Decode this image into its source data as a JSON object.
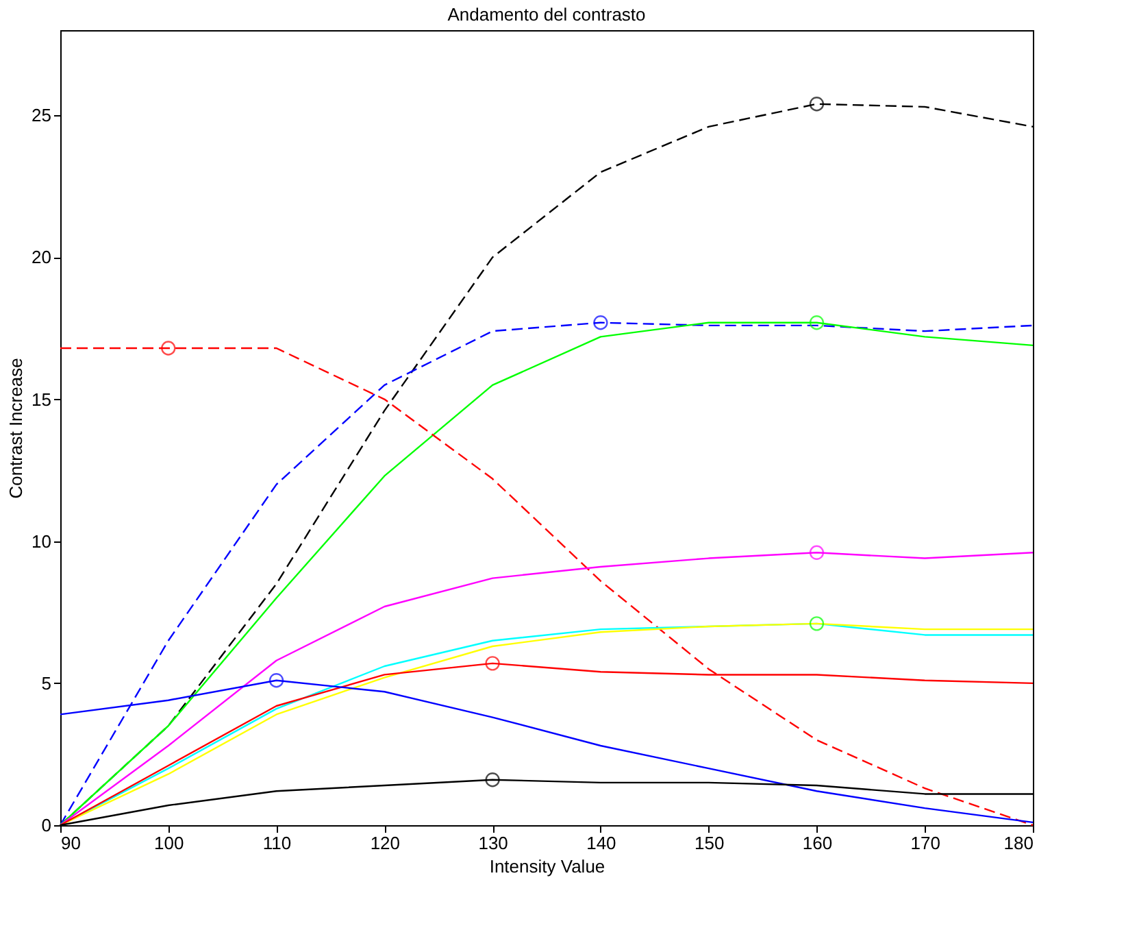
{
  "chart_data": {
    "type": "line",
    "title": "Andamento del contrasto",
    "xlabel": "Intensity Value",
    "ylabel": "Contrast Increase",
    "x": [
      90,
      100,
      110,
      120,
      130,
      140,
      150,
      160,
      170,
      180
    ],
    "xlim": [
      90,
      180
    ],
    "xticks": [
      90,
      100,
      110,
      120,
      130,
      140,
      150,
      160,
      170,
      180
    ],
    "ylim": [
      0,
      28
    ],
    "yticks": [
      0,
      5,
      10,
      15,
      20,
      25
    ],
    "grid": false,
    "marker": "none",
    "series": [
      {
        "color": "#000000",
        "line_style": "dashed",
        "values": [
          0,
          3.5,
          8.5,
          14.6,
          20,
          23,
          24.6,
          25.4,
          25.3,
          24.6
        ]
      },
      {
        "color": "#0000ff",
        "line_style": "dashed",
        "values": [
          0,
          6.5,
          12,
          15.5,
          17.4,
          17.7,
          17.6,
          17.6,
          17.4,
          17.6
        ]
      },
      {
        "color": "#00ff00",
        "line_style": "solid",
        "values": [
          0,
          3.5,
          8,
          12.3,
          15.5,
          17.2,
          17.7,
          17.7,
          17.2,
          16.9
        ]
      },
      {
        "color": "#ff0000",
        "line_style": "dashed",
        "values": [
          16.8,
          16.8,
          16.8,
          15,
          12.2,
          8.6,
          5.5,
          3,
          1.3,
          0
        ]
      },
      {
        "color": "#ff00ff",
        "line_style": "solid",
        "values": [
          0,
          2.8,
          5.8,
          7.7,
          8.7,
          9.1,
          9.4,
          9.6,
          9.4,
          9.6
        ]
      },
      {
        "color": "#00ffff",
        "line_style": "solid",
        "values": [
          0,
          2,
          4.1,
          5.6,
          6.5,
          6.9,
          7.0,
          7.1,
          6.7,
          6.7
        ]
      },
      {
        "color": "#ffff00",
        "line_style": "solid",
        "values": [
          0,
          1.8,
          3.9,
          5.2,
          6.3,
          6.8,
          7.0,
          7.1,
          6.9,
          6.9
        ]
      },
      {
        "color": "#ff0000",
        "line_style": "solid",
        "values": [
          0,
          2.1,
          4.2,
          5.3,
          5.7,
          5.4,
          5.3,
          5.3,
          5.1,
          5.0
        ]
      },
      {
        "color": "#0000ff",
        "line_style": "solid",
        "values": [
          3.9,
          4.4,
          5.1,
          4.7,
          3.8,
          2.8,
          2.0,
          1.2,
          0.6,
          0.1
        ]
      },
      {
        "color": "#000000",
        "line_style": "solid",
        "values": [
          0,
          0.7,
          1.2,
          1.4,
          1.6,
          1.5,
          1.5,
          1.4,
          1.1,
          1.1
        ]
      },
      {
        "type": "scatter",
        "marker": "circle",
        "x": [
          160,
          100,
          140,
          160,
          160,
          160,
          110,
          130,
          130
        ],
        "values": [
          25.4,
          16.8,
          17.7,
          17.7,
          9.6,
          7.1,
          5.1,
          5.7,
          1.6
        ],
        "colors": [
          "#000000",
          "#ff0000",
          "#0000ff",
          "#00ff00",
          "#ff00ff",
          "#00ff00",
          "#0000ff",
          "#ff0000",
          "#000000"
        ]
      }
    ]
  }
}
